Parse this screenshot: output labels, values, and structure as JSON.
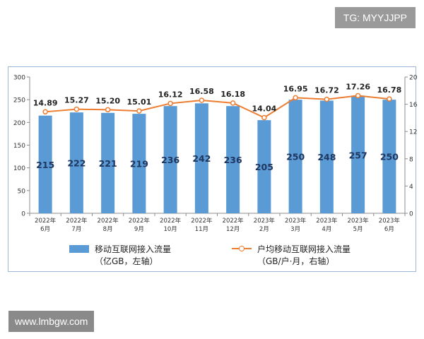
{
  "watermark_top": "TG: MYYJJPP",
  "watermark_bottom": "www.lmbgw.com",
  "chart_data": {
    "type": "bar",
    "categories": [
      [
        "2022年",
        "6月"
      ],
      [
        "2022年",
        "7月"
      ],
      [
        "2022年",
        "8月"
      ],
      [
        "2022年",
        "9月"
      ],
      [
        "2022年",
        "10月"
      ],
      [
        "2022年",
        "11月"
      ],
      [
        "2022年",
        "12月"
      ],
      [
        "2023年",
        "2月"
      ],
      [
        "2023年",
        "3月"
      ],
      [
        "2023年",
        "4月"
      ],
      [
        "2023年",
        "5月"
      ],
      [
        "2023年",
        "6月"
      ]
    ],
    "series": [
      {
        "name": "移动互联网接入流量",
        "unit": "（亿GB，左轴）",
        "type": "bar",
        "axis": "left",
        "color": "#5b9bd5",
        "values": [
          215,
          222,
          221,
          219,
          236,
          242,
          236,
          205,
          250,
          248,
          257,
          250
        ]
      },
      {
        "name": "户均移动互联网接入流量",
        "unit": "（GB/户·月，右轴）",
        "type": "line",
        "axis": "right",
        "color": "#ed7d31",
        "values": [
          14.89,
          15.27,
          15.2,
          15.01,
          16.12,
          16.58,
          16.18,
          14.04,
          16.95,
          16.72,
          17.26,
          16.78
        ]
      }
    ],
    "left_axis": {
      "ylim": [
        0,
        300
      ],
      "ticks": [
        "0",
        "50",
        "100",
        "150",
        "200",
        "250",
        "300"
      ]
    },
    "right_axis": {
      "ylim": [
        0,
        20
      ],
      "ticks": [
        "0",
        "4",
        "8",
        "12",
        "16",
        "20"
      ]
    },
    "grid": false,
    "legend_position": "bottom"
  }
}
